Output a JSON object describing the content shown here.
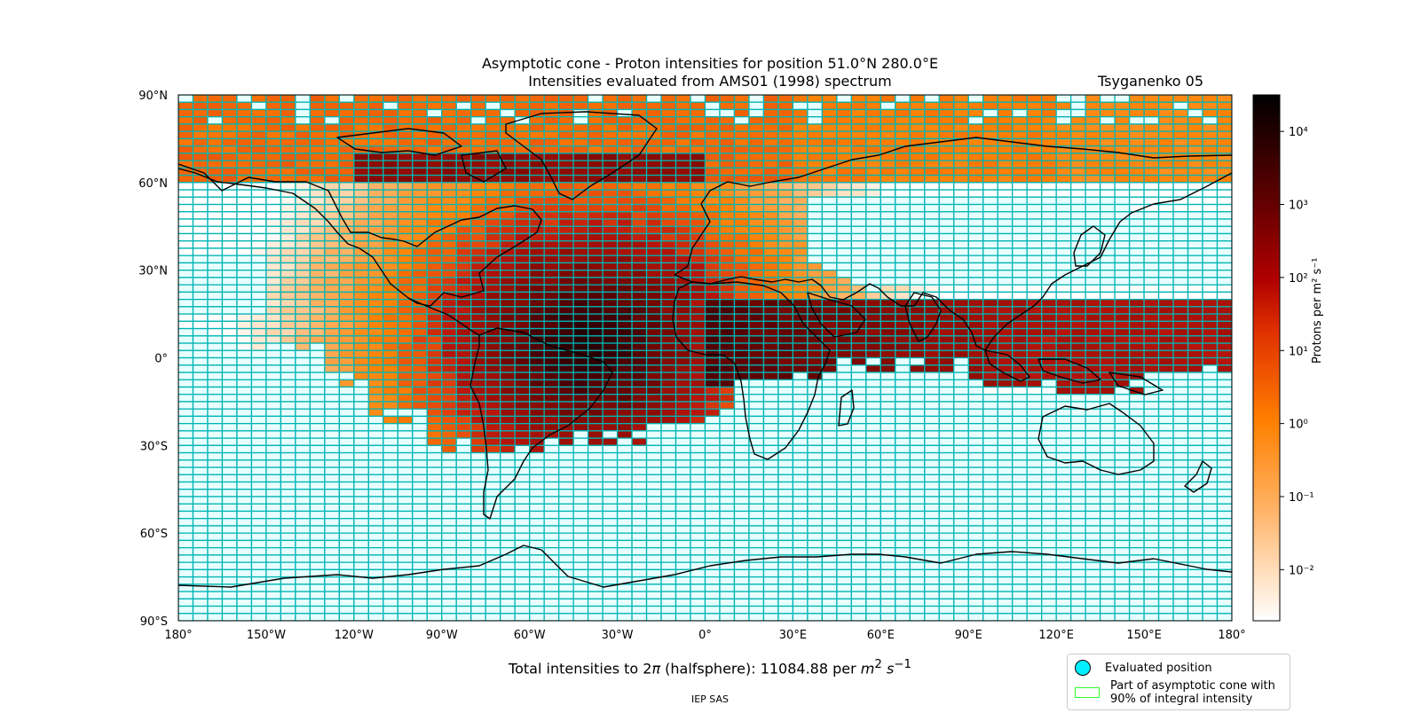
{
  "title": {
    "line1": "Asymptotic cone - Proton intensities for position 51.0°N 280.0°E",
    "line2": "Intensities evaluated from AMS01 (1998) spectrum",
    "model": "Tsyganenko 05"
  },
  "axes": {
    "lat_ticks": [
      "90°N",
      "60°N",
      "30°N",
      "0°",
      "30°S",
      "60°S",
      "90°S"
    ],
    "lon_ticks": [
      "180°",
      "150°W",
      "120°W",
      "90°W",
      "60°W",
      "30°W",
      "0°",
      "30°E",
      "60°E",
      "90°E",
      "120°E",
      "150°E",
      "180°"
    ]
  },
  "colorbar": {
    "label": "Protons per m² s⁻¹",
    "ticks": [
      "10⁴",
      "10³",
      "10²",
      "10¹",
      "10⁰",
      "10⁻¹",
      "10⁻²"
    ],
    "log_min": -2.7,
    "log_max": 4.5,
    "colors": {
      "0": "#ffffff",
      "0.35": "#ff8000",
      "0.6": "#c01000",
      "0.8": "#600000",
      "1": "#000000"
    }
  },
  "grid": {
    "cell_lon_deg": 5,
    "cell_lat_deg": 2.5,
    "edge_color": "#00b4b4",
    "empty_color": "#e8ffff"
  },
  "total": {
    "prefix": "Total intensities to 2",
    "pi": "π",
    "middle": " (halfsphere): 11084.88 per ",
    "unit_m": "m",
    "unit_exp": "2",
    "unit_s": " s",
    "unit_s_exp": "−1"
  },
  "credit": "IEP SAS",
  "legend": {
    "item1": "Evaluated position",
    "item2_line1": "Part of asymptotic cone with",
    "item2_line2": "90% of integral intensity",
    "marker_color": "#00f0ff",
    "rect_color": "#2cff2c"
  }
}
